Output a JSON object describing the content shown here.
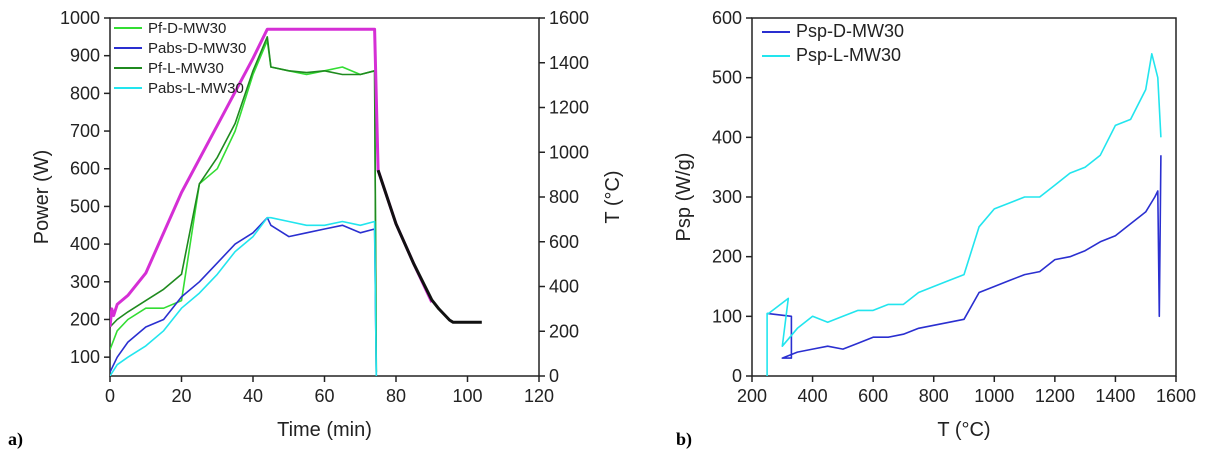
{
  "panels": [
    {
      "label": "a)"
    },
    {
      "label": "b)"
    }
  ],
  "chart_data": [
    {
      "type": "line",
      "panel": "a)",
      "title": "",
      "xlabel": "Time (min)",
      "ylabel": "Power (W)",
      "y2label": "T (°C)",
      "xlim": [
        0,
        120
      ],
      "ylim": [
        50,
        1000
      ],
      "y2lim": [
        0,
        1600
      ],
      "x_ticks": [
        0,
        20,
        40,
        60,
        80,
        100,
        120
      ],
      "y_ticks": [
        100,
        200,
        300,
        400,
        500,
        600,
        700,
        800,
        900,
        1000
      ],
      "y2_ticks": [
        0,
        200,
        400,
        600,
        800,
        1000,
        1200,
        1400,
        1600
      ],
      "legend_position": "top-left",
      "grid": false,
      "series": [
        {
          "name": "Pf-D-MW30",
          "color": "#33dd33",
          "axis": "left",
          "x": [
            0,
            2,
            5,
            10,
            15,
            20,
            25,
            30,
            35,
            40,
            44,
            45,
            50,
            55,
            60,
            65,
            70,
            74,
            74.5
          ],
          "y": [
            120,
            170,
            200,
            230,
            230,
            250,
            560,
            600,
            700,
            850,
            940,
            870,
            860,
            850,
            860,
            870,
            850,
            860,
            60
          ]
        },
        {
          "name": "Pabs-D-MW30",
          "color": "#2a2fd0",
          "axis": "left",
          "x": [
            0,
            2,
            5,
            10,
            15,
            20,
            25,
            30,
            35,
            40,
            44,
            45,
            50,
            55,
            60,
            65,
            70,
            74,
            74.5
          ],
          "y": [
            60,
            100,
            140,
            180,
            200,
            260,
            300,
            350,
            400,
            430,
            470,
            450,
            420,
            430,
            440,
            450,
            430,
            440,
            50
          ]
        },
        {
          "name": "Pf-L-MW30",
          "color": "#1f8a1f",
          "axis": "left",
          "x": [
            0,
            2,
            5,
            10,
            15,
            20,
            25,
            30,
            35,
            40,
            44,
            45,
            50,
            55,
            60,
            65,
            70,
            74,
            74.5
          ],
          "y": [
            180,
            200,
            220,
            250,
            280,
            320,
            560,
            630,
            720,
            860,
            950,
            870,
            860,
            855,
            860,
            850,
            850,
            860,
            60
          ]
        },
        {
          "name": "Pabs-L-MW30",
          "color": "#22e5ee",
          "axis": "left",
          "x": [
            0,
            2,
            5,
            10,
            15,
            20,
            25,
            30,
            35,
            40,
            44,
            45,
            50,
            55,
            60,
            65,
            70,
            74,
            74.5
          ],
          "y": [
            50,
            80,
            100,
            130,
            170,
            230,
            270,
            320,
            380,
            420,
            470,
            470,
            460,
            450,
            450,
            460,
            450,
            460,
            50
          ]
        },
        {
          "name": "",
          "color": "#d52fd5",
          "axis": "right",
          "x": [
            0,
            0.5,
            1,
            2,
            5,
            10,
            20,
            30,
            40,
            44,
            46,
            50,
            60,
            70,
            74,
            75,
            80,
            85,
            90
          ],
          "y": [
            220,
            300,
            270,
            320,
            360,
            460,
            820,
            1120,
            1420,
            1550,
            1550,
            1550,
            1550,
            1550,
            1550,
            920,
            680,
            500,
            330
          ]
        },
        {
          "name": "",
          "color": "#111111",
          "axis": "right",
          "x": [
            75,
            80,
            85,
            90,
            92,
            95,
            96,
            100,
            104
          ],
          "y": [
            920,
            680,
            500,
            340,
            300,
            250,
            240,
            240,
            240
          ]
        }
      ]
    },
    {
      "type": "line",
      "panel": "b)",
      "title": "",
      "xlabel": "T (°C)",
      "ylabel": "Psp (W/g)",
      "xlim": [
        200,
        1600
      ],
      "ylim": [
        0,
        600
      ],
      "x_ticks": [
        200,
        400,
        600,
        800,
        1000,
        1200,
        1400,
        1600
      ],
      "y_ticks": [
        0,
        100,
        200,
        300,
        400,
        500,
        600
      ],
      "legend_position": "top-left",
      "grid": false,
      "series": [
        {
          "name": "Psp-D-MW30",
          "color": "#2a2fd0",
          "x": [
            250,
            330,
            330,
            300,
            350,
            400,
            450,
            500,
            550,
            600,
            650,
            700,
            750,
            800,
            850,
            900,
            950,
            1000,
            1050,
            1100,
            1150,
            1200,
            1250,
            1300,
            1350,
            1400,
            1450,
            1500,
            1530,
            1540,
            1545,
            1550
          ],
          "y": [
            105,
            100,
            30,
            30,
            40,
            45,
            50,
            45,
            55,
            65,
            65,
            70,
            80,
            85,
            90,
            95,
            140,
            150,
            160,
            170,
            175,
            195,
            200,
            210,
            225,
            235,
            255,
            275,
            300,
            310,
            100,
            370
          ]
        },
        {
          "name": "Psp-L-MW30",
          "color": "#22e5ee",
          "x": [
            250,
            250,
            255,
            320,
            300,
            350,
            400,
            450,
            500,
            550,
            600,
            650,
            700,
            750,
            800,
            850,
            900,
            950,
            1000,
            1050,
            1100,
            1150,
            1200,
            1250,
            1300,
            1350,
            1400,
            1450,
            1500,
            1520,
            1540,
            1550
          ],
          "y": [
            0,
            105,
            105,
            130,
            50,
            80,
            100,
            90,
            100,
            110,
            110,
            120,
            120,
            140,
            150,
            160,
            170,
            250,
            280,
            290,
            300,
            300,
            320,
            340,
            350,
            370,
            420,
            430,
            480,
            540,
            500,
            400
          ]
        }
      ]
    }
  ]
}
